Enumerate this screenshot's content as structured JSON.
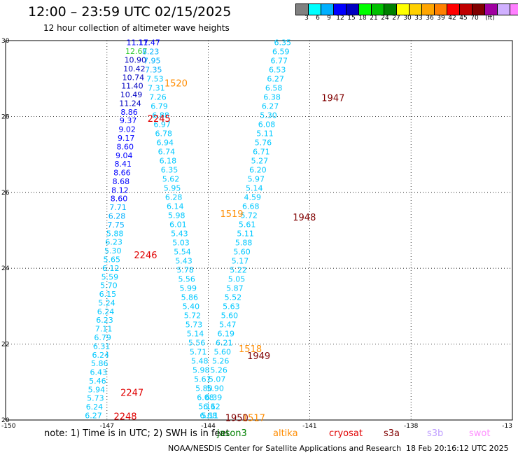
{
  "header": {
    "title": "12:00 – 23:59 UTC 02/15/2025",
    "subtitle": "12 hour collection of altimeter wave heights"
  },
  "color_scale": {
    "colors": [
      "#808080",
      "#00ffff",
      "#00b0ff",
      "#0000ff",
      "#0000c0",
      "#00ff00",
      "#00c000",
      "#008000",
      "#ffff00",
      "#ffd000",
      "#ffa500",
      "#ff8000",
      "#ff0000",
      "#c00000",
      "#800000",
      "#a000a0",
      "#d0b0ff",
      "#ff80ff",
      "#000000"
    ],
    "labels": [
      "3",
      "6",
      "9",
      "12",
      "15",
      "18",
      "21",
      "24",
      "27",
      "30",
      "33",
      "36",
      "39",
      "42",
      "45",
      "70",
      "(ft)"
    ]
  },
  "axes": {
    "y_ticks": [
      "30",
      "28",
      "26",
      "24",
      "22",
      "20"
    ],
    "x_ticks": [
      "-150",
      "-147",
      "-144",
      "-141",
      "-138",
      "-13"
    ]
  },
  "footer": {
    "note": "note:  1) Time is in UTC; 2) SWH is in feet",
    "credit": "NOAA/NESDIS Center for Satellite Applications and Research",
    "stamp": "18 Feb 20:16:12 UTC 2025"
  },
  "satellites": [
    {
      "name": "jason3",
      "color": "#008000"
    },
    {
      "name": "altika",
      "color": "#ff8c00"
    },
    {
      "name": "cryosat",
      "color": "#e00000"
    },
    {
      "name": "s3a",
      "color": "#800000"
    },
    {
      "name": "s3b",
      "color": "#c0a0ff"
    },
    {
      "name": "swot",
      "color": "#ff90ff"
    }
  ],
  "time_labels": [
    {
      "text": "1520",
      "lon": -145.3,
      "lat": 28.88,
      "color": "#ff8c00"
    },
    {
      "text": "1519",
      "lon": -143.65,
      "lat": 25.44,
      "color": "#ff8c00"
    },
    {
      "text": "1518",
      "lon": -143.1,
      "lat": 21.88,
      "color": "#ff8c00"
    },
    {
      "text": "1517",
      "lon": -143.0,
      "lat": 20.06,
      "color": "#ff8c00"
    },
    {
      "text": "1947",
      "lon": -140.65,
      "lat": 28.5,
      "color": "#800000"
    },
    {
      "text": "1948",
      "lon": -141.5,
      "lat": 25.35,
      "color": "#800000"
    },
    {
      "text": "1949",
      "lon": -142.85,
      "lat": 21.7,
      "color": "#800000"
    },
    {
      "text": "1950",
      "lon": -143.5,
      "lat": 20.06,
      "color": "#800000"
    },
    {
      "text": "2245",
      "lon": -145.8,
      "lat": 27.95,
      "color": "#e00000"
    },
    {
      "text": "2246",
      "lon": -146.2,
      "lat": 24.35,
      "color": "#e00000"
    },
    {
      "text": "2247",
      "lon": -146.6,
      "lat": 20.73,
      "color": "#e00000"
    },
    {
      "text": "2248",
      "lon": -146.8,
      "lat": 20.1,
      "color": "#e00000"
    }
  ],
  "tracks": [
    {
      "name": "track-a",
      "lon_start": -146.1,
      "lat_start": 29.95,
      "lon_end": -147.4,
      "lat_end": 20.12,
      "values": [
        "11.17",
        "12.67",
        "10.90",
        "10.42",
        "10.74",
        "11.40",
        "10.49",
        "11.24",
        "8.86",
        "9.37",
        "9.02",
        "9.17",
        "8.60",
        "9.04",
        "8.41",
        "8.66",
        "8.68",
        "8.12",
        "8.60",
        "7.71",
        "6.28",
        "7.75",
        "5.88",
        "6.23",
        "5.30",
        "5.65",
        "6.12",
        "5.59",
        "5.70",
        "6.15",
        "5.24",
        "6.24",
        "6.23",
        "7.11",
        "6.79",
        "6.31",
        "6.24",
        "5.86",
        "6.43",
        "5.46",
        "5.94",
        "5.73",
        "6.24",
        "6.27"
      ],
      "colors": [
        "#0000ff",
        "#33cc33",
        "#0000c0",
        "#0000c0",
        "#0000c0",
        "#0000c0",
        "#0000c0",
        "#0000c0",
        "#0000ff",
        "#0000ff",
        "#0000ff",
        "#0000ff",
        "#0000ff",
        "#0000ff",
        "#0000ff",
        "#0000ff",
        "#0000ff",
        "#0000ff",
        "#0000ff",
        "#00b0ff",
        "#00b0ff",
        "#00b0ff",
        "#00c8ff",
        "#00c8ff",
        "#00c8ff",
        "#00c8ff",
        "#00c8ff",
        "#00c8ff",
        "#00c8ff",
        "#00c8ff",
        "#00c8ff",
        "#00c8ff",
        "#00c8ff",
        "#00c8ff",
        "#00c8ff",
        "#00c8ff",
        "#00c8ff",
        "#00c8ff",
        "#00c8ff",
        "#00c8ff",
        "#00c8ff",
        "#00c8ff",
        "#00c8ff",
        "#00c8ff"
      ]
    },
    {
      "name": "track-b",
      "lon_start": -145.75,
      "lat_start": 29.95,
      "lon_end": -144.0,
      "lat_end": 20.12,
      "values": [
        "11.47",
        "8.23",
        "7.95",
        "7.35",
        "7.53",
        "7.31",
        "7.26",
        "6.79",
        "6.88",
        "6.97",
        "6.78",
        "6.94",
        "6.74",
        "6.18",
        "6.35",
        "5.62",
        "5.95",
        "6.28",
        "6.14",
        "5.98",
        "6.01",
        "5.43",
        "5.03",
        "5.54",
        "5.43",
        "5.78",
        "5.56",
        "5.99",
        "5.86",
        "5.40",
        "5.72",
        "5.73",
        "5.14",
        "5.56",
        "5.71",
        "5.48",
        "5.98",
        "5.61",
        "5.80",
        "6.08",
        "5.16",
        "6.68"
      ],
      "colors": [
        "#0000ff",
        "#00b0ff",
        "#00b0ff",
        "#00b0ff",
        "#00c8ff",
        "#00c8ff",
        "#00c8ff",
        "#00c8ff",
        "#00c8ff",
        "#00c8ff",
        "#00c8ff",
        "#00c8ff",
        "#00c8ff",
        "#00c8ff",
        "#00c8ff",
        "#00c8ff",
        "#00c8ff",
        "#00c8ff",
        "#00c8ff",
        "#00c8ff",
        "#00c8ff",
        "#00c8ff",
        "#00c8ff",
        "#00c8ff",
        "#00c8ff",
        "#00c8ff",
        "#00c8ff",
        "#00c8ff",
        "#00c8ff",
        "#00c8ff",
        "#00c8ff",
        "#00c8ff",
        "#00c8ff",
        "#00c8ff",
        "#00c8ff",
        "#00c8ff",
        "#00c8ff",
        "#00c8ff",
        "#00c8ff",
        "#00c8ff",
        "#00c8ff",
        "#00c8ff"
      ]
    },
    {
      "name": "track-c",
      "lon_start": -141.8,
      "lat_start": 29.95,
      "lon_end": -143.95,
      "lat_end": 20.12,
      "values": [
        "6.35",
        "6.59",
        "6.77",
        "6.53",
        "6.27",
        "6.58",
        "6.38",
        "6.27",
        "5.30",
        "6.08",
        "5.11",
        "5.76",
        "6.71",
        "5.27",
        "6.20",
        "5.97",
        "5.14",
        "4.59",
        "6.68",
        "5.72",
        "5.61",
        "5.11",
        "5.88",
        "5.60",
        "5.17",
        "5.22",
        "5.05",
        "5.87",
        "5.52",
        "5.63",
        "5.60",
        "5.47",
        "6.19",
        "6.21",
        "5.60",
        "5.26",
        "5.26",
        "5.07",
        "5.90",
        "6.39",
        "6.12",
        "5.11"
      ],
      "colors": [
        "#00c8ff",
        "#00c8ff",
        "#00c8ff",
        "#00c8ff",
        "#00c8ff",
        "#00c8ff",
        "#00c8ff",
        "#00c8ff",
        "#00c8ff",
        "#00c8ff",
        "#00c8ff",
        "#00c8ff",
        "#00c8ff",
        "#00c8ff",
        "#00c8ff",
        "#00c8ff",
        "#00c8ff",
        "#00c8ff",
        "#00c8ff",
        "#00c8ff",
        "#00c8ff",
        "#00c8ff",
        "#00c8ff",
        "#00c8ff",
        "#00c8ff",
        "#00c8ff",
        "#00c8ff",
        "#00c8ff",
        "#00c8ff",
        "#00c8ff",
        "#00c8ff",
        "#00c8ff",
        "#00c8ff",
        "#00c8ff",
        "#00c8ff",
        "#00c8ff",
        "#00c8ff",
        "#00c8ff",
        "#00c8ff",
        "#00c8ff",
        "#00c8ff",
        "#00c8ff"
      ]
    }
  ]
}
